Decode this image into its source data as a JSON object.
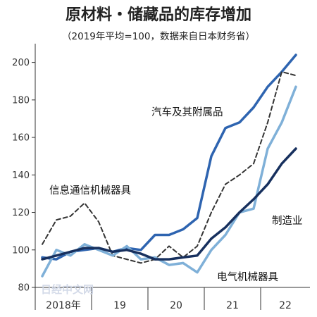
{
  "chart_data": {
    "type": "line",
    "title": "原材料・储藏品的库存增加",
    "subtitle": "（2019年平均=100，数据来自日本财务省）",
    "ylim": [
      80,
      210
    ],
    "yticks": [
      80,
      100,
      120,
      140,
      160,
      180,
      200
    ],
    "x_tick_labels": [
      "2018年",
      "19",
      "20",
      "21",
      "22"
    ],
    "xlim": [
      2018.0,
      2022.875
    ],
    "grid": false,
    "series": [
      {
        "name": "汽车及其附属品",
        "color": "#2e64b0",
        "style": "solid",
        "x": [
          2018.125,
          2018.375,
          2018.625,
          2018.875,
          2019.125,
          2019.375,
          2019.625,
          2019.875,
          2020.125,
          2020.375,
          2020.625,
          2020.875,
          2021.125,
          2021.375,
          2021.625,
          2021.875,
          2022.125,
          2022.375,
          2022.625
        ],
        "y": [
          96,
          95,
          99,
          100,
          101,
          99,
          101,
          100,
          108,
          108,
          111,
          117,
          150,
          165,
          168,
          176,
          187,
          195,
          204
        ]
      },
      {
        "name": "信息通信机械器具",
        "color": "#333333",
        "style": "dashed",
        "x": [
          2018.125,
          2018.375,
          2018.625,
          2018.875,
          2019.125,
          2019.375,
          2019.625,
          2019.875,
          2020.125,
          2020.375,
          2020.625,
          2020.875,
          2021.125,
          2021.375,
          2021.625,
          2021.875,
          2022.125,
          2022.375,
          2022.625
        ],
        "y": [
          103,
          116,
          118,
          125,
          115,
          97,
          95,
          93,
          95,
          102,
          96,
          102,
          120,
          135,
          140,
          146,
          168,
          195,
          193
        ]
      },
      {
        "name": "电气机械器具",
        "color": "#7fb0d8",
        "style": "solid",
        "x": [
          2018.125,
          2018.375,
          2018.625,
          2018.875,
          2019.125,
          2019.375,
          2019.625,
          2019.875,
          2020.125,
          2020.375,
          2020.625,
          2020.875,
          2021.125,
          2021.375,
          2021.625,
          2021.875,
          2022.125,
          2022.375,
          2022.625
        ],
        "y": [
          86,
          100,
          97,
          103,
          100,
          97,
          102,
          95,
          96,
          92,
          93,
          88,
          100,
          108,
          120,
          122,
          154,
          168,
          187
        ]
      },
      {
        "name": "制造业",
        "color": "#17305e",
        "style": "solid",
        "x": [
          2018.125,
          2018.375,
          2018.625,
          2018.875,
          2019.125,
          2019.375,
          2019.625,
          2019.875,
          2020.125,
          2020.375,
          2020.625,
          2020.875,
          2021.125,
          2021.375,
          2021.625,
          2021.875,
          2022.125,
          2022.375,
          2022.625
        ],
        "y": [
          95,
          97,
          99,
          101,
          101,
          99,
          100,
          98,
          95,
          95,
          96,
          97,
          106,
          112,
          120,
          127,
          135,
          146,
          154
        ]
      }
    ],
    "annotations": {
      "auto": "汽车及其附属品",
      "ict": "信息通信机械器具",
      "mfg": "制造业",
      "elec": "电气机械器具"
    }
  },
  "watermark": "日经中文网"
}
